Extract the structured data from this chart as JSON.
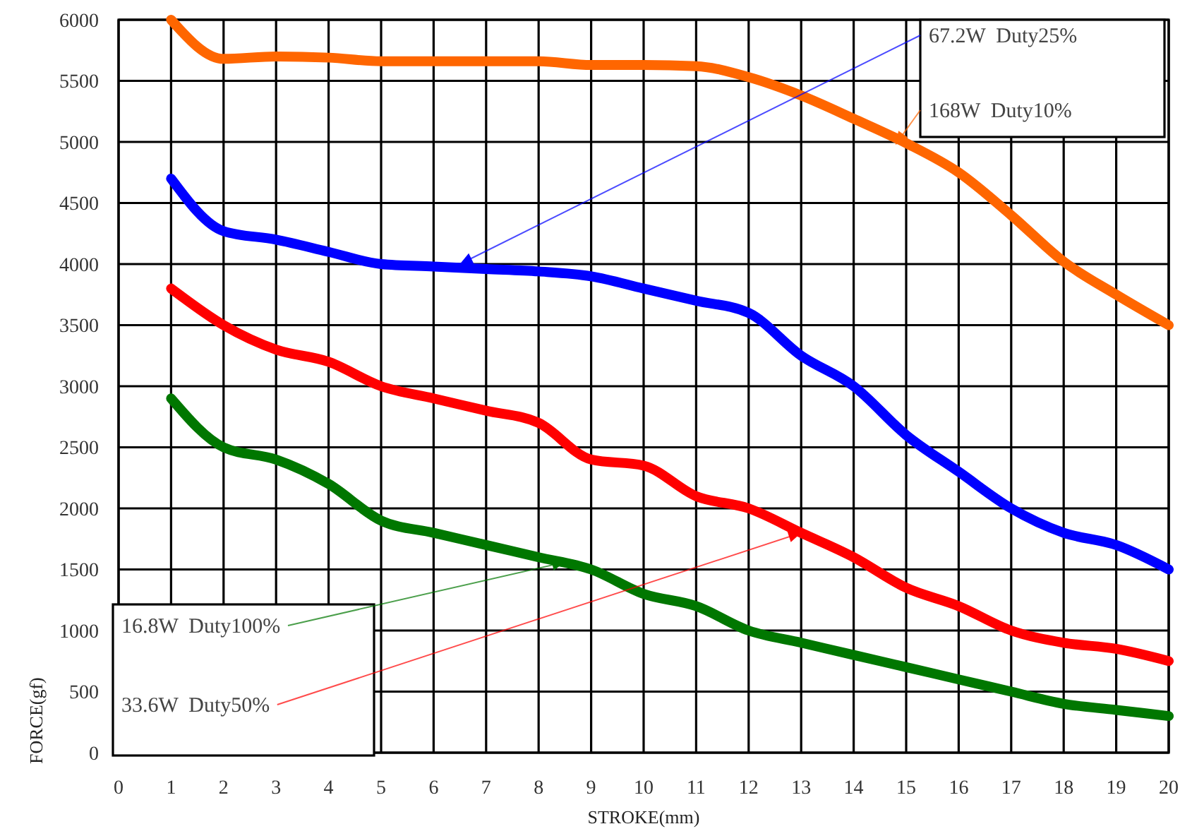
{
  "chart_data": {
    "type": "line",
    "xlabel": "STROKE(mm)",
    "ylabel": "FORCE(gf)",
    "x": [
      1,
      2,
      3,
      4,
      5,
      6,
      7,
      8,
      9,
      10,
      11,
      12,
      13,
      14,
      15,
      16,
      17,
      18,
      19,
      20
    ],
    "series": [
      {
        "color": "#ff6600",
        "values": [
          6000,
          5680,
          5700,
          5690,
          5660,
          5660,
          5660,
          5660,
          5630,
          5630,
          5620,
          5530,
          5380,
          5190,
          4990,
          4750,
          4400,
          4020,
          3750,
          3500
        ]
      },
      {
        "color": "#0000ff",
        "values": [
          4700,
          4270,
          4200,
          4100,
          4000,
          3980,
          3960,
          3940,
          3900,
          3800,
          3700,
          3600,
          3250,
          3000,
          2600,
          2300,
          2000,
          1800,
          1700,
          1500
        ]
      },
      {
        "color": "#ff0000",
        "values": [
          3800,
          3500,
          3300,
          3200,
          3000,
          2900,
          2800,
          2700,
          2400,
          2350,
          2100,
          2000,
          1800,
          1600,
          1350,
          1200,
          1000,
          900,
          850,
          750
        ]
      },
      {
        "color": "#007700",
        "values": [
          2900,
          2500,
          2400,
          2200,
          1900,
          1800,
          1700,
          1600,
          1500,
          1300,
          1200,
          1000,
          900,
          800,
          700,
          600,
          500,
          400,
          350,
          300
        ]
      }
    ],
    "xlim": [
      0,
      20
    ],
    "xticks": [
      0,
      1,
      2,
      3,
      4,
      5,
      6,
      7,
      8,
      9,
      10,
      11,
      12,
      13,
      14,
      15,
      16,
      17,
      18,
      19,
      20
    ],
    "ylim": [
      0,
      6000
    ],
    "yticks": [
      0,
      500,
      1000,
      1500,
      2000,
      2500,
      3000,
      3500,
      4000,
      4500,
      5000,
      5500,
      6000
    ],
    "grid": true,
    "marker": "none",
    "line_style": "solid",
    "annotations": [
      {
        "text": "67.2W  Duty25%",
        "x": 6.5,
        "y": 4000
      },
      {
        "text": "168W  Duty10%",
        "x": 14.8,
        "y": 4980
      },
      {
        "text": "16.8W  Duty100%",
        "x": 8.5,
        "y": 1560
      },
      {
        "text": "33.6W  Duty50%",
        "x": 13,
        "y": 1800
      }
    ]
  }
}
